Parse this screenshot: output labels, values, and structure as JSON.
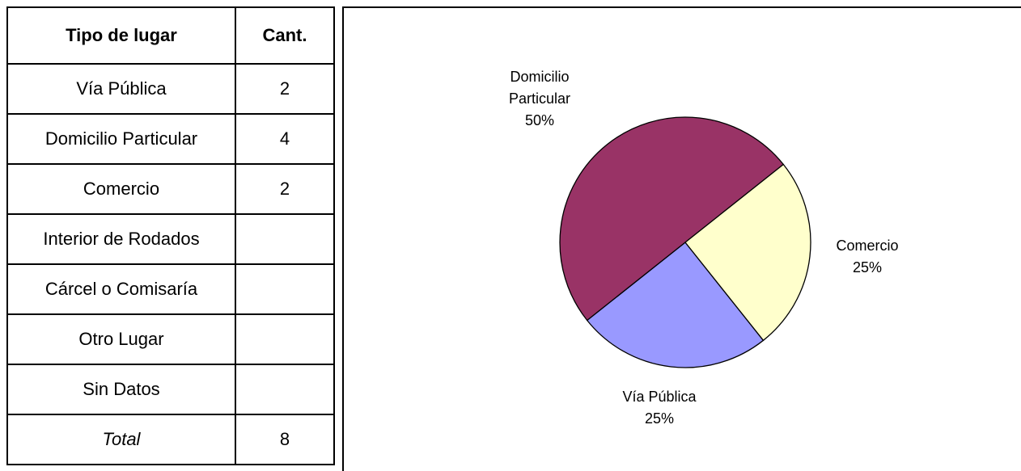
{
  "table": {
    "header": [
      "Tipo de lugar",
      "Cant."
    ],
    "rows": [
      [
        "Vía Pública",
        "2"
      ],
      [
        "Domicilio Particular",
        "4"
      ],
      [
        "Comercio",
        "2"
      ],
      [
        "Interior de Rodados"
      ],
      [
        "Cárcel o Comisaría"
      ],
      [
        "Otro Lugar"
      ],
      [
        "Sin Datos"
      ],
      [
        "Total",
        "8"
      ]
    ]
  },
  "chart_data": {
    "type": "pie",
    "categories": [
      "Vía Pública",
      "Domicilio Particular",
      "Comercio"
    ],
    "values": [
      25,
      50,
      25
    ],
    "value_labels": [
      "25%",
      "50%",
      "25%"
    ],
    "colors": [
      "#9999ff",
      "#993366",
      "#ffffcc"
    ]
  }
}
